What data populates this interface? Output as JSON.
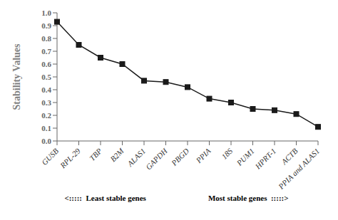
{
  "chart_data": {
    "type": "line",
    "ylabel": "Stability Values",
    "annotations": [
      "<:::::  Least stable genes",
      "Most stable genes  :::::>"
    ],
    "categories": [
      "GUSB",
      "RPL-29",
      "TBP",
      "B2M",
      "ALAS1",
      "GAPDH",
      "PBGD",
      "PPIA",
      "18S",
      "PUM1",
      "HPRT-1",
      "ACTB",
      "PPIA and ALAS1"
    ],
    "values": [
      0.93,
      0.75,
      0.65,
      0.6,
      0.47,
      0.46,
      0.42,
      0.33,
      0.3,
      0.25,
      0.24,
      0.21,
      0.11
    ],
    "color": "#1a1a1a",
    "marker": "square",
    "ylim": [
      0.0,
      1.0
    ],
    "yticks": [
      {
        "value": 0.0,
        "label": "0.0"
      },
      0.1,
      0.2,
      0.3,
      0.4,
      0.5,
      0.6,
      0.7,
      0.8,
      0.9,
      {
        "value": 1.0,
        "label": "1.0"
      }
    ],
    "grid": false
  }
}
